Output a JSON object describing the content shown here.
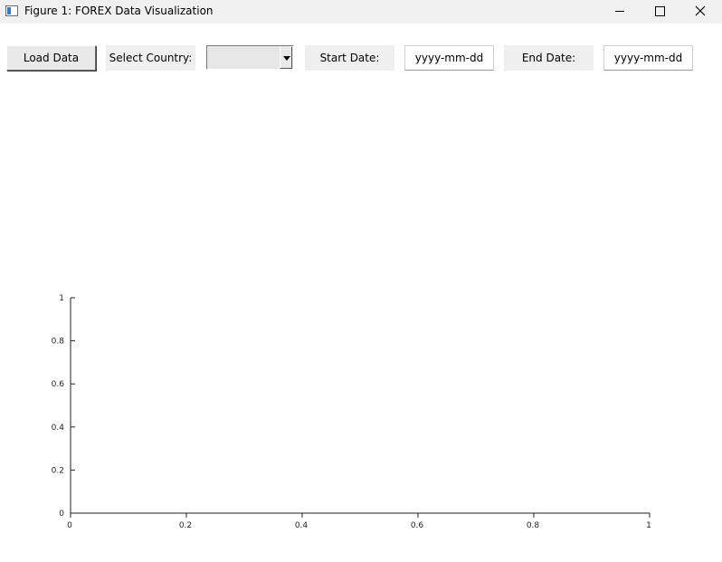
{
  "window": {
    "title": "Figure 1: FOREX Data Visualization",
    "controls": [
      "minimize-icon",
      "maximize-icon",
      "close-icon"
    ]
  },
  "toolbar": {
    "load_label": "Load Data",
    "country_label": "Select Country:",
    "country_value": "",
    "start_label": "Start Date:",
    "start_placeholder": "yyyy-mm-dd",
    "end_label": "End Date:",
    "end_placeholder": "yyyy-mm-dd"
  },
  "chart_data": {
    "type": "line",
    "title": "",
    "xlabel": "",
    "ylabel": "",
    "series": [],
    "xlim": [
      0,
      1
    ],
    "ylim": [
      0,
      1
    ],
    "x_ticks": [
      "0",
      "0.2",
      "0.4",
      "0.6",
      "0.8",
      "1"
    ],
    "y_ticks": [
      "0",
      "0.2",
      "0.4",
      "0.6",
      "0.8",
      "1"
    ],
    "grid": false
  }
}
